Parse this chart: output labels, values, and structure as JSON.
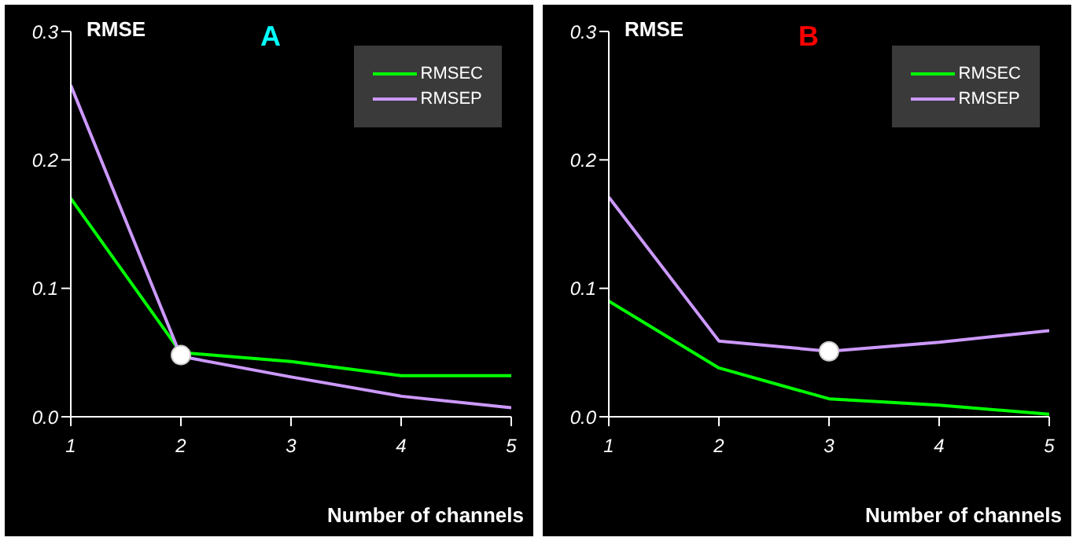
{
  "chart_data": [
    {
      "type": "line",
      "title": "A",
      "ylabel": "RMSE",
      "xlabel": "Number of channels",
      "xlim": [
        1,
        5
      ],
      "xticks": [
        1,
        2,
        3,
        4,
        5
      ],
      "ylim": [
        0,
        0.3
      ],
      "yticks": [
        {
          "value": 0,
          "label": "0.0"
        },
        0.1,
        0.2,
        0.3
      ],
      "grid": false,
      "legend": "top right",
      "series": [
        {
          "name": "RMSEC",
          "color": "#00ff00",
          "x": [
            1,
            2,
            3,
            4,
            5
          ],
          "values": [
            0.17,
            0.05,
            0.043,
            0.032,
            0.032
          ]
        },
        {
          "name": "RMSEP",
          "color": "#cc99ff",
          "x": [
            1,
            2,
            3,
            4,
            5
          ],
          "values": [
            0.258,
            0.047,
            0.031,
            0.016,
            0.007
          ]
        },
        {
          "type": "scatter",
          "color": "#ffffff",
          "x": [
            2
          ],
          "values": [
            0.048
          ]
        }
      ]
    },
    {
      "type": "line",
      "title": "B",
      "ylabel": "RMSE",
      "xlabel": "Number of channels",
      "xlim": [
        1,
        5
      ],
      "xticks": [
        1,
        2,
        3,
        4,
        5
      ],
      "ylim": [
        0,
        0.3
      ],
      "yticks": [
        {
          "value": 0,
          "label": "0.0"
        },
        0.1,
        0.2,
        0.3
      ],
      "grid": false,
      "legend": "top right",
      "series": [
        {
          "name": "RMSEC",
          "color": "#00ff00",
          "x": [
            1,
            2,
            3,
            4,
            5
          ],
          "values": [
            0.09,
            0.038,
            0.014,
            0.009,
            0.002
          ]
        },
        {
          "name": "RMSEP",
          "color": "#cc99ff",
          "x": [
            1,
            2,
            3,
            4,
            5
          ],
          "values": [
            0.171,
            0.059,
            0.051,
            0.058,
            0.067
          ]
        },
        {
          "type": "scatter",
          "color": "#ffffff",
          "x": [
            3
          ],
          "values": [
            0.051
          ]
        }
      ]
    }
  ]
}
